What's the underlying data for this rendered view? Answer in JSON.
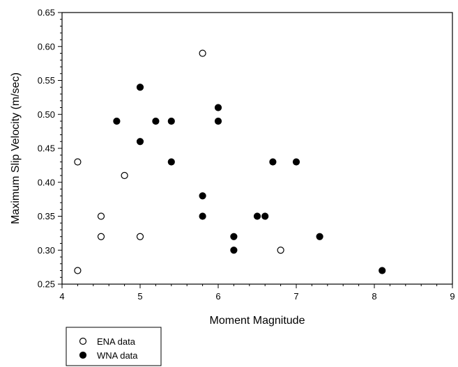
{
  "chart_data": {
    "type": "scatter",
    "xlabel": "Moment Magnitude",
    "ylabel": "Maximum Slip Velocity (m/sec)",
    "xlim": [
      4,
      9
    ],
    "ylim": [
      0.25,
      0.65
    ],
    "x_ticks": [
      "4",
      "5",
      "6",
      "7",
      "8",
      "9"
    ],
    "y_ticks": [
      "0.25",
      "0.30",
      "0.35",
      "0.40",
      "0.45",
      "0.50",
      "0.55",
      "0.60",
      "0.65"
    ],
    "grid": false,
    "legend_position": "bottom-left, below axes",
    "series": [
      {
        "name": "ENA data",
        "marker": "open-circle",
        "color": "#000000",
        "points": [
          {
            "x": 4.2,
            "y": 0.43
          },
          {
            "x": 4.2,
            "y": 0.27
          },
          {
            "x": 4.5,
            "y": 0.35
          },
          {
            "x": 4.5,
            "y": 0.32
          },
          {
            "x": 4.8,
            "y": 0.41
          },
          {
            "x": 5.0,
            "y": 0.32
          },
          {
            "x": 5.8,
            "y": 0.59
          },
          {
            "x": 6.8,
            "y": 0.3
          }
        ]
      },
      {
        "name": "WNA data",
        "marker": "filled-circle",
        "color": "#000000",
        "points": [
          {
            "x": 4.7,
            "y": 0.49
          },
          {
            "x": 5.0,
            "y": 0.54
          },
          {
            "x": 5.0,
            "y": 0.46
          },
          {
            "x": 5.2,
            "y": 0.49
          },
          {
            "x": 5.4,
            "y": 0.49
          },
          {
            "x": 5.4,
            "y": 0.43
          },
          {
            "x": 5.8,
            "y": 0.38
          },
          {
            "x": 5.8,
            "y": 0.35
          },
          {
            "x": 6.0,
            "y": 0.51
          },
          {
            "x": 6.0,
            "y": 0.49
          },
          {
            "x": 6.2,
            "y": 0.32
          },
          {
            "x": 6.2,
            "y": 0.3
          },
          {
            "x": 6.5,
            "y": 0.35
          },
          {
            "x": 6.6,
            "y": 0.35
          },
          {
            "x": 6.7,
            "y": 0.43
          },
          {
            "x": 7.0,
            "y": 0.43
          },
          {
            "x": 7.3,
            "y": 0.32
          },
          {
            "x": 8.1,
            "y": 0.27
          }
        ]
      }
    ]
  }
}
